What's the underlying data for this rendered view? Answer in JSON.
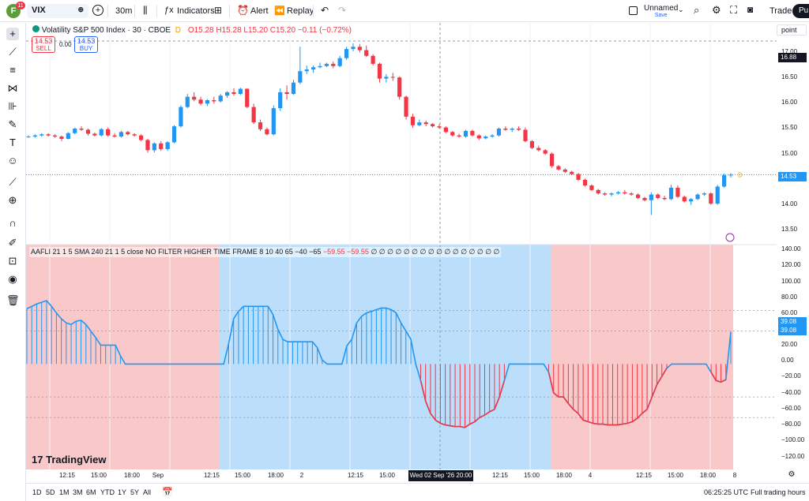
{
  "topbar": {
    "avatar_letter": "F",
    "notif_count": "11",
    "symbol": "VIX",
    "interval": "30m",
    "indicators_label": "Indicators",
    "alert_label": "Alert",
    "replay_label": "Replay",
    "layout_name": "Unnamed",
    "layout_status": "Save",
    "trade_label": "Trade",
    "publish_label": "Pu"
  },
  "legend": {
    "title": "Volatility S&P 500 Index · 30 · CBOE",
    "flag": "D",
    "ohlc": "O15.28  H15.28  L15.20  C15.20  −0.11 (−0.72%)",
    "sell_price": "14.53",
    "sell_label": "SELL",
    "spread": "0.00",
    "buy_price": "14.53",
    "buy_label": "BUY"
  },
  "indicator": {
    "settings": "AAFLI 21 1 5 SMA 240 21 1 5 close NO FILTER HIGHER TIME FRAME 8 10 40 65 −40 −65",
    "val1": "−59.55",
    "val2": "−59.55",
    "zeros": "∅ ∅ ∅ ∅ ∅ ∅ ∅ ∅ ∅ ∅ ∅ ∅ ∅ ∅ ∅ ∅"
  },
  "price_scale": {
    "mode": "point",
    "labels": [
      "17.00",
      "16.50",
      "16.00",
      "15.50",
      "15.00",
      "14.50",
      "14.00",
      "13.50"
    ],
    "crosshair_price": "16.88",
    "last_price": "14.53"
  },
  "osc_scale": {
    "labels": [
      "140.00",
      "120.00",
      "100.00",
      "80.00",
      "60.00",
      "40.00",
      "20.00",
      "0.00",
      "−20.00",
      "−40.00",
      "−60.00",
      "−80.00",
      "−100.00",
      "−120.00"
    ],
    "value_a": "39.08",
    "value_b": "39.08"
  },
  "time_axis": {
    "labels": [
      "12:15",
      "15:00",
      "18:00",
      "Sep",
      "12:15",
      "15:00",
      "18:00",
      "2",
      "12:15",
      "15:00",
      "12:15",
      "15:00",
      "18:00",
      "4",
      "12:15",
      "15:00",
      "18:00",
      "8"
    ],
    "crosshair_time": "Wed 02 Sep '26   20:00"
  },
  "bottombar": {
    "ranges": [
      "1D",
      "5D",
      "1M",
      "3M",
      "6M",
      "YTD",
      "1Y",
      "5Y",
      "All"
    ],
    "clock": "06:25:25 UTC",
    "session": "Full trading hours"
  },
  "brand": "TradingView",
  "colors": {
    "up": "#2196f3",
    "down": "#f23645",
    "bg_red": "#f9c9c9",
    "bg_blue": "#bbdefb",
    "accent": "#2962ff"
  },
  "chart_data": [
    {
      "type": "candlestick",
      "title": "Volatility S&P 500 Index · 30 · CBOE",
      "ylim": [
        13.3,
        17.2
      ],
      "candles": [
        [
          15.2,
          15.22,
          15.18,
          15.2
        ],
        [
          15.2,
          15.24,
          15.18,
          15.22
        ],
        [
          15.22,
          15.26,
          15.2,
          15.24
        ],
        [
          15.24,
          15.26,
          15.2,
          15.22
        ],
        [
          15.22,
          15.24,
          15.18,
          15.2
        ],
        [
          15.2,
          15.22,
          15.12,
          15.16
        ],
        [
          15.16,
          15.28,
          15.15,
          15.26
        ],
        [
          15.26,
          15.36,
          15.24,
          15.34
        ],
        [
          15.34,
          15.38,
          15.3,
          15.32
        ],
        [
          15.32,
          15.34,
          15.22,
          15.25
        ],
        [
          15.25,
          15.27,
          15.2,
          15.22
        ],
        [
          15.22,
          15.35,
          15.2,
          15.33
        ],
        [
          15.33,
          15.36,
          15.2,
          15.22
        ],
        [
          15.22,
          15.26,
          15.18,
          15.2
        ],
        [
          15.2,
          15.3,
          15.18,
          15.28
        ],
        [
          15.28,
          15.3,
          15.22,
          15.24
        ],
        [
          15.24,
          15.26,
          15.2,
          15.22
        ],
        [
          15.22,
          15.24,
          15.12,
          15.14
        ],
        [
          15.14,
          15.16,
          14.92,
          14.96
        ],
        [
          14.96,
          15.1,
          14.92,
          15.08
        ],
        [
          15.08,
          15.12,
          14.95,
          14.98
        ],
        [
          14.98,
          15.12,
          14.95,
          15.1
        ],
        [
          15.1,
          15.4,
          15.08,
          15.38
        ],
        [
          15.38,
          15.75,
          15.36,
          15.72
        ],
        [
          15.72,
          15.95,
          15.7,
          15.9
        ],
        [
          15.9,
          15.98,
          15.82,
          15.85
        ],
        [
          15.85,
          15.9,
          15.75,
          15.78
        ],
        [
          15.78,
          15.86,
          15.74,
          15.84
        ],
        [
          15.84,
          15.9,
          15.78,
          15.82
        ],
        [
          15.82,
          15.95,
          15.8,
          15.92
        ],
        [
          15.92,
          16.0,
          15.88,
          15.98
        ],
        [
          15.98,
          16.05,
          15.92,
          15.95
        ],
        [
          15.95,
          16.06,
          15.93,
          16.04
        ],
        [
          16.04,
          16.05,
          15.7,
          15.72
        ],
        [
          15.72,
          15.78,
          15.42,
          15.45
        ],
        [
          15.45,
          15.5,
          15.3,
          15.33
        ],
        [
          15.33,
          15.36,
          15.22,
          15.24
        ],
        [
          15.24,
          15.75,
          15.22,
          15.7
        ],
        [
          15.7,
          16.05,
          15.65,
          15.98
        ],
        [
          15.98,
          16.1,
          15.85,
          15.95
        ],
        [
          15.95,
          16.2,
          15.93,
          16.15
        ],
        [
          16.15,
          16.78,
          16.12,
          16.35
        ],
        [
          16.35,
          16.45,
          16.3,
          16.38
        ],
        [
          16.38,
          16.45,
          16.32,
          16.42
        ],
        [
          16.42,
          16.5,
          16.4,
          16.44
        ],
        [
          16.44,
          16.5,
          16.42,
          16.48
        ],
        [
          16.48,
          16.52,
          16.4,
          16.44
        ],
        [
          16.44,
          16.62,
          16.42,
          16.58
        ],
        [
          16.58,
          16.78,
          16.55,
          16.74
        ],
        [
          16.74,
          16.84,
          16.7,
          16.78
        ],
        [
          16.78,
          16.83,
          16.68,
          16.72
        ],
        [
          16.72,
          16.8,
          16.6,
          16.62
        ],
        [
          16.62,
          16.65,
          16.45,
          16.48
        ],
        [
          16.48,
          16.5,
          16.15,
          16.22
        ],
        [
          16.22,
          16.3,
          16.15,
          16.25
        ],
        [
          16.25,
          16.32,
          16.18,
          16.24
        ],
        [
          16.24,
          16.26,
          15.85,
          15.9
        ],
        [
          15.9,
          15.92,
          15.5,
          15.55
        ],
        [
          15.55,
          15.6,
          15.35,
          15.4
        ],
        [
          15.4,
          15.5,
          15.38,
          15.45
        ],
        [
          15.45,
          15.48,
          15.38,
          15.42
        ],
        [
          15.42,
          15.44,
          15.36,
          15.38
        ],
        [
          15.38,
          15.42,
          15.34,
          15.36
        ],
        [
          15.36,
          15.38,
          15.26,
          15.28
        ],
        [
          15.28,
          15.3,
          15.2,
          15.22
        ],
        [
          15.22,
          15.25,
          15.18,
          15.2
        ],
        [
          15.2,
          15.32,
          15.18,
          15.3
        ],
        [
          15.3,
          15.32,
          15.2,
          15.22
        ],
        [
          15.22,
          15.24,
          15.14,
          15.17
        ],
        [
          15.17,
          15.22,
          15.15,
          15.2
        ],
        [
          15.2,
          15.24,
          15.18,
          15.22
        ],
        [
          15.22,
          15.36,
          15.2,
          15.34
        ],
        [
          15.34,
          15.38,
          15.3,
          15.32
        ],
        [
          15.32,
          15.36,
          15.28,
          15.34
        ],
        [
          15.34,
          15.38,
          15.3,
          15.32
        ],
        [
          15.32,
          15.36,
          15.1,
          15.12
        ],
        [
          15.12,
          15.14,
          14.98,
          15.0
        ],
        [
          15.0,
          15.04,
          14.94,
          14.96
        ],
        [
          14.96,
          14.98,
          14.88,
          14.9
        ],
        [
          14.9,
          14.92,
          14.65,
          14.68
        ],
        [
          14.68,
          14.7,
          14.6,
          14.62
        ],
        [
          14.62,
          14.64,
          14.56,
          14.58
        ],
        [
          14.58,
          14.6,
          14.52,
          14.54
        ],
        [
          14.54,
          14.56,
          14.42,
          14.44
        ],
        [
          14.44,
          14.46,
          14.32,
          14.34
        ],
        [
          14.34,
          14.36,
          14.24,
          14.26
        ],
        [
          14.26,
          14.28,
          14.18,
          14.2
        ],
        [
          14.2,
          14.22,
          14.16,
          14.18
        ],
        [
          14.18,
          14.22,
          14.15,
          14.2
        ],
        [
          14.2,
          14.24,
          14.18,
          14.22
        ],
        [
          14.22,
          14.26,
          14.18,
          14.2
        ],
        [
          14.2,
          14.22,
          14.16,
          14.18
        ],
        [
          14.18,
          14.2,
          14.1,
          14.12
        ],
        [
          14.12,
          14.14,
          14.06,
          14.08
        ],
        [
          14.08,
          14.22,
          13.82,
          14.18
        ],
        [
          14.18,
          14.2,
          14.1,
          14.12
        ],
        [
          14.12,
          14.16,
          14.08,
          14.1
        ],
        [
          14.1,
          14.35,
          14.08,
          14.3
        ],
        [
          14.3,
          14.34,
          14.12,
          14.14
        ],
        [
          14.14,
          14.16,
          14.04,
          14.06
        ],
        [
          14.06,
          14.12,
          14.0,
          14.1
        ],
        [
          14.1,
          14.2,
          14.08,
          14.18
        ],
        [
          14.18,
          14.22,
          14.16,
          14.2
        ],
        [
          14.2,
          14.22,
          14.0,
          14.02
        ],
        [
          14.02,
          14.35,
          14.0,
          14.32
        ],
        [
          14.32,
          14.55,
          14.3,
          14.52
        ],
        [
          14.52,
          14.56,
          14.48,
          14.53
        ]
      ]
    },
    {
      "type": "bar",
      "title": "AAFLI",
      "ylim": [
        -128,
        145
      ],
      "values": [
        67,
        70,
        73,
        75,
        77,
        70,
        62,
        55,
        50,
        48,
        52,
        53,
        48,
        40,
        32,
        23,
        23,
        23,
        23,
        10,
        0,
        0,
        0,
        0,
        0,
        0,
        0,
        0,
        0,
        0,
        0,
        0,
        0,
        0,
        0,
        0,
        0,
        0,
        0,
        0,
        0,
        25,
        55,
        64,
        70,
        70,
        70,
        70,
        70,
        70,
        60,
        42,
        30,
        27,
        27,
        27,
        27,
        27,
        27,
        20,
        5,
        0,
        0,
        0,
        0,
        22,
        30,
        50,
        58,
        62,
        64,
        66,
        68,
        68,
        66,
        62,
        50,
        40,
        30,
        0,
        -20,
        -45,
        -60,
        -68,
        -72,
        -74,
        -75,
        -76,
        -76,
        -77,
        -73,
        -70,
        -65,
        -62,
        -58,
        -55,
        -40,
        -20,
        0,
        0,
        0,
        0,
        0,
        0,
        0,
        0,
        -10,
        -35,
        -40,
        -40,
        -48,
        -55,
        -60,
        -68,
        -70,
        -72,
        -73,
        -73,
        -74,
        -74,
        -74,
        -73,
        -72,
        -70,
        -66,
        -60,
        -55,
        -40,
        -25,
        -15,
        -5,
        0,
        0,
        0,
        0,
        0,
        0,
        0,
        0,
        -10,
        -20,
        -22,
        -19,
        39
      ]
    }
  ]
}
